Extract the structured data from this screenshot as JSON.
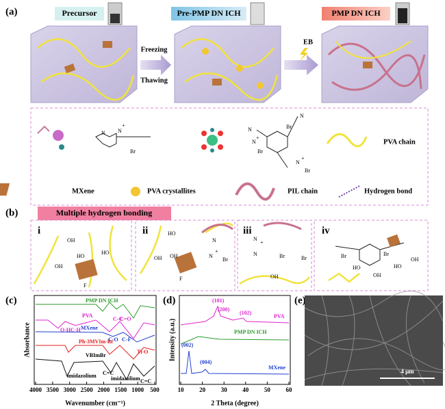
{
  "panel_a": {
    "label": "(a)",
    "states": [
      "Precursor",
      "Pre-PMP DN ICH",
      "PMP DN ICH"
    ],
    "step1": [
      "Freezing",
      "Thawing"
    ],
    "step2": "EB"
  },
  "legend": {
    "items": [
      "PVA chain",
      "MXene",
      "PVA crystallites",
      "PIL chain",
      "Hydrogen bond"
    ],
    "chem": [
      "N",
      "N",
      "+",
      "Br",
      "N",
      "N",
      "+",
      "Br",
      "N",
      "N",
      "+",
      "Br",
      "Br"
    ]
  },
  "panel_b": {
    "label": "(b)",
    "title": "Multiple hydrogen bonding",
    "subpanels": [
      "i",
      "ii",
      "iii",
      "iv"
    ],
    "texts": {
      "i": [
        "OH",
        "OH",
        "HO",
        "HO",
        "F"
      ],
      "ii": [
        "HO",
        "OH",
        "OH",
        "F",
        "N",
        "N",
        "+",
        "Br"
      ],
      "iii": [
        "N",
        "+",
        "Br",
        "Br",
        "OH",
        "N"
      ],
      "iv": [
        "Br",
        "Br",
        "HO",
        "HO",
        "OH",
        "OH"
      ]
    }
  },
  "panel_c": {
    "label": "(c)",
    "ylabel": "Absorbance",
    "xlabel": "Wavenumber (cm⁻¹)",
    "xticks": [
      4000,
      3500,
      3000,
      2500,
      2000,
      1500,
      1000,
      500
    ],
    "series": [
      "PMP DN ICH",
      "PVA",
      "MXene",
      "Ph-3MVIm-Br",
      "VBImBr"
    ],
    "annotations": [
      "O-H",
      "C-H",
      "C-C",
      "C-O",
      "C=O",
      "C-F",
      "Ti-O",
      "imidazolium",
      "C=C",
      "imidazolium",
      "C=C"
    ]
  },
  "panel_d": {
    "label": "(d)",
    "ylabel": "Intensity (a.u.)",
    "xlabel": "2 Theta (degree)",
    "xticks": [
      10,
      20,
      30,
      40,
      50,
      60
    ],
    "series": [
      "PVA",
      "PMP DN ICH",
      "MXene"
    ],
    "peaks": [
      "(101)",
      "(200)",
      "(102)",
      "(002)",
      "(004)"
    ]
  },
  "panel_e": {
    "label": "(e)",
    "scale": "4 μm"
  }
}
